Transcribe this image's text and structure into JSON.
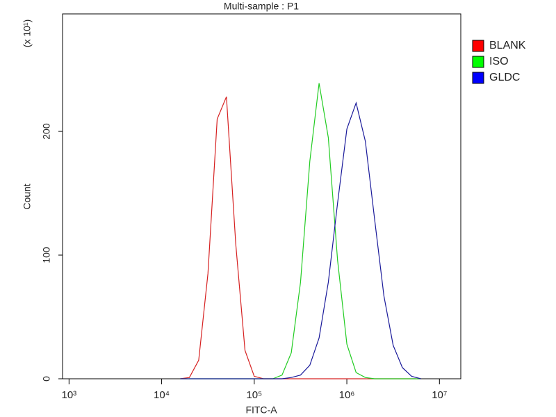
{
  "chart_data": {
    "type": "line",
    "title": "Multi-sample : P1",
    "x_label": "FITC-A",
    "y_label": "Count",
    "y_multiplier": "(x 10¹)",
    "xscale": "log",
    "x": [
      15849,
      19953,
      25119,
      31623,
      39811,
      50119,
      63096,
      79433,
      100000,
      125893,
      158489,
      199526,
      251189,
      316228,
      398107,
      501187,
      630957,
      794328,
      1000000,
      1258925,
      1584893,
      1995262,
      2511886,
      3162278,
      3981072,
      5011872,
      6309573
    ],
    "series": [
      {
        "name": "BLANK",
        "color": "#d62020",
        "values": [
          0,
          1,
          15,
          85,
          210,
          228,
          109,
          23,
          2,
          0,
          0,
          0,
          0,
          0,
          0,
          0,
          0,
          0,
          0,
          0,
          0,
          0,
          0,
          0,
          0,
          0,
          0
        ]
      },
      {
        "name": "ISO",
        "color": "#22cc22",
        "values": [
          0,
          0,
          0,
          0,
          0,
          0,
          0,
          0,
          0,
          0,
          0,
          3,
          21,
          78,
          176,
          239,
          195,
          96,
          28,
          5,
          1,
          0,
          0,
          0,
          0,
          0,
          0
        ]
      },
      {
        "name": "GLDC",
        "color": "#1a1a9a",
        "values": [
          0,
          0,
          0,
          0,
          0,
          0,
          0,
          0,
          0,
          0,
          0,
          0,
          1,
          3,
          11,
          33,
          78,
          142,
          202,
          223,
          192,
          129,
          67,
          27,
          9,
          2,
          0
        ]
      }
    ],
    "legend_colors": [
      "#ff0000",
      "#00ff00",
      "#0000ff"
    ],
    "xlim": [
      851,
      17000000
    ],
    "xticks": [
      {
        "value": 1000,
        "label": "10³"
      },
      {
        "value": 10000,
        "label": "10⁴"
      },
      {
        "value": 100000,
        "label": "10⁵"
      },
      {
        "value": 1000000,
        "label": "10⁶"
      },
      {
        "value": 10000000,
        "label": "10⁷"
      }
    ],
    "ylim": [
      0,
      295
    ],
    "yticks": [
      0,
      100,
      200
    ],
    "grid": false,
    "legend": "right"
  }
}
